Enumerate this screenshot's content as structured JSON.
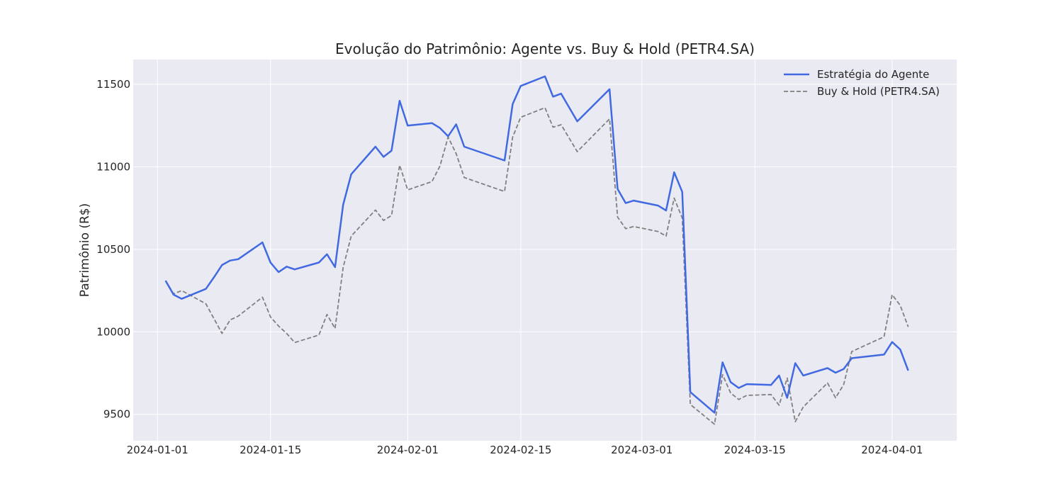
{
  "chart_data": {
    "type": "line",
    "title": "Evolução do Patrimônio: Agente vs. Buy & Hold (PETR4.SA)",
    "xlabel": "",
    "ylabel": "Patrimônio (R$)",
    "x_tick_labels": [
      "2024-01-01",
      "2024-01-15",
      "2024-02-01",
      "2024-02-15",
      "2024-03-01",
      "2024-03-15",
      "2024-04-01"
    ],
    "y_ticks": [
      9500,
      10000,
      10500,
      11000,
      11500
    ],
    "xlim": [
      "2023-12-29",
      "2024-04-09"
    ],
    "ylim": [
      9340,
      11650
    ],
    "grid": true,
    "legend_position": "top-right",
    "background_color": "#eaeaf2",
    "series": [
      {
        "name": "Estratégia do Agente",
        "color": "#4169e1",
        "style": "solid",
        "points": [
          [
            "2024-01-02",
            10310
          ],
          [
            "2024-01-03",
            10225
          ],
          [
            "2024-01-04",
            10200
          ],
          [
            "2024-01-07",
            10260
          ],
          [
            "2024-01-08",
            10330
          ],
          [
            "2024-01-09",
            10405
          ],
          [
            "2024-01-10",
            10432
          ],
          [
            "2024-01-11",
            10440
          ],
          [
            "2024-01-14",
            10542
          ],
          [
            "2024-01-15",
            10420
          ],
          [
            "2024-01-16",
            10362
          ],
          [
            "2024-01-17",
            10395
          ],
          [
            "2024-01-18",
            10378
          ],
          [
            "2024-01-21",
            10420
          ],
          [
            "2024-01-22",
            10470
          ],
          [
            "2024-01-23",
            10392
          ],
          [
            "2024-01-24",
            10770
          ],
          [
            "2024-01-25",
            10955
          ],
          [
            "2024-01-28",
            11122
          ],
          [
            "2024-01-29",
            11060
          ],
          [
            "2024-01-30",
            11098
          ],
          [
            "2024-01-31",
            11400
          ],
          [
            "2024-02-01",
            11250
          ],
          [
            "2024-02-04",
            11265
          ],
          [
            "2024-02-05",
            11235
          ],
          [
            "2024-02-06",
            11185
          ],
          [
            "2024-02-07",
            11257
          ],
          [
            "2024-02-08",
            11122
          ],
          [
            "2024-02-13",
            11038
          ],
          [
            "2024-02-14",
            11380
          ],
          [
            "2024-02-15",
            11490
          ],
          [
            "2024-02-18",
            11548
          ],
          [
            "2024-02-19",
            11425
          ],
          [
            "2024-02-20",
            11443
          ],
          [
            "2024-02-22",
            11275
          ],
          [
            "2024-02-26",
            11470
          ],
          [
            "2024-02-27",
            10865
          ],
          [
            "2024-02-28",
            10780
          ],
          [
            "2024-02-29",
            10795
          ],
          [
            "2024-03-03",
            10765
          ],
          [
            "2024-03-04",
            10735
          ],
          [
            "2024-03-05",
            10967
          ],
          [
            "2024-03-06",
            10848
          ],
          [
            "2024-03-07",
            9635
          ],
          [
            "2024-03-10",
            9510
          ],
          [
            "2024-03-11",
            9815
          ],
          [
            "2024-03-12",
            9695
          ],
          [
            "2024-03-13",
            9660
          ],
          [
            "2024-03-14",
            9683
          ],
          [
            "2024-03-17",
            9678
          ],
          [
            "2024-03-18",
            9735
          ],
          [
            "2024-03-19",
            9600
          ],
          [
            "2024-03-20",
            9810
          ],
          [
            "2024-03-21",
            9735
          ],
          [
            "2024-03-24",
            9780
          ],
          [
            "2024-03-25",
            9752
          ],
          [
            "2024-03-26",
            9775
          ],
          [
            "2024-03-27",
            9840
          ],
          [
            "2024-03-31",
            9862
          ],
          [
            "2024-04-01",
            9938
          ],
          [
            "2024-04-02",
            9893
          ],
          [
            "2024-04-03",
            9765
          ]
        ]
      },
      {
        "name": "Buy & Hold (PETR4.SA)",
        "color": "#808080",
        "style": "dashed",
        "points": [
          [
            "2024-01-02",
            10310
          ],
          [
            "2024-01-03",
            10230
          ],
          [
            "2024-01-04",
            10250
          ],
          [
            "2024-01-07",
            10170
          ],
          [
            "2024-01-08",
            10080
          ],
          [
            "2024-01-09",
            9990
          ],
          [
            "2024-01-10",
            10072
          ],
          [
            "2024-01-11",
            10095
          ],
          [
            "2024-01-14",
            10210
          ],
          [
            "2024-01-15",
            10090
          ],
          [
            "2024-01-16",
            10035
          ],
          [
            "2024-01-17",
            9990
          ],
          [
            "2024-01-18",
            9935
          ],
          [
            "2024-01-21",
            9980
          ],
          [
            "2024-01-22",
            10105
          ],
          [
            "2024-01-23",
            10020
          ],
          [
            "2024-01-24",
            10390
          ],
          [
            "2024-01-25",
            10580
          ],
          [
            "2024-01-28",
            10738
          ],
          [
            "2024-01-29",
            10675
          ],
          [
            "2024-01-30",
            10705
          ],
          [
            "2024-01-31",
            11010
          ],
          [
            "2024-02-01",
            10860
          ],
          [
            "2024-02-04",
            10910
          ],
          [
            "2024-02-05",
            11005
          ],
          [
            "2024-02-06",
            11180
          ],
          [
            "2024-02-07",
            11080
          ],
          [
            "2024-02-08",
            10935
          ],
          [
            "2024-02-13",
            10850
          ],
          [
            "2024-02-14",
            11180
          ],
          [
            "2024-02-15",
            11300
          ],
          [
            "2024-02-18",
            11358
          ],
          [
            "2024-02-19",
            11240
          ],
          [
            "2024-02-20",
            11255
          ],
          [
            "2024-02-22",
            11092
          ],
          [
            "2024-02-26",
            11290
          ],
          [
            "2024-02-27",
            10695
          ],
          [
            "2024-02-28",
            10625
          ],
          [
            "2024-02-29",
            10638
          ],
          [
            "2024-03-03",
            10608
          ],
          [
            "2024-03-04",
            10580
          ],
          [
            "2024-03-05",
            10810
          ],
          [
            "2024-03-06",
            10690
          ],
          [
            "2024-03-07",
            9560
          ],
          [
            "2024-03-10",
            9440
          ],
          [
            "2024-03-11",
            9740
          ],
          [
            "2024-03-12",
            9630
          ],
          [
            "2024-03-13",
            9590
          ],
          [
            "2024-03-14",
            9615
          ],
          [
            "2024-03-17",
            9620
          ],
          [
            "2024-03-18",
            9555
          ],
          [
            "2024-03-19",
            9720
          ],
          [
            "2024-03-20",
            9455
          ],
          [
            "2024-03-21",
            9545
          ],
          [
            "2024-03-24",
            9690
          ],
          [
            "2024-03-25",
            9600
          ],
          [
            "2024-03-26",
            9680
          ],
          [
            "2024-03-27",
            9880
          ],
          [
            "2024-03-31",
            9970
          ],
          [
            "2024-04-01",
            10225
          ],
          [
            "2024-04-02",
            10160
          ],
          [
            "2024-04-03",
            10030
          ]
        ]
      }
    ]
  }
}
